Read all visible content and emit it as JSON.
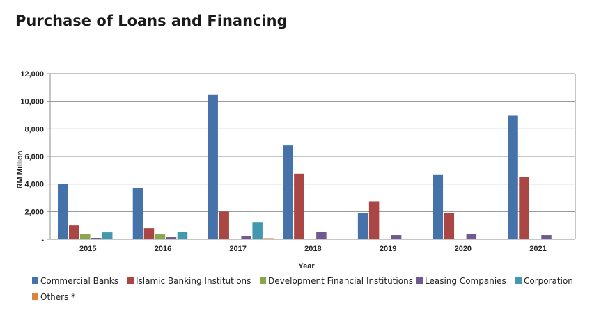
{
  "chart_data": {
    "type": "bar",
    "title": "Purchase of Loans and Financing",
    "xlabel": "Year",
    "ylabel": "RM Million",
    "categories": [
      "2015",
      "2016",
      "2017",
      "2018",
      "2019",
      "2020",
      "2021"
    ],
    "ylim": [
      0,
      12000
    ],
    "yticks": [
      0,
      2000,
      4000,
      6000,
      8000,
      10000,
      12000
    ],
    "ytick_labels": [
      "-",
      "2,000",
      "4,000",
      "6,000",
      "8,000",
      "10,000",
      "12,000"
    ],
    "grid": true,
    "legend_position": "bottom",
    "series": [
      {
        "name": "Commercial Banks",
        "color": "#4672AA",
        "values": [
          4000,
          3700,
          10500,
          6800,
          1900,
          4700,
          8950
        ]
      },
      {
        "name": "Islamic Banking Institutions",
        "color": "#AA4643",
        "values": [
          1000,
          800,
          2000,
          4750,
          2750,
          1900,
          4500
        ]
      },
      {
        "name": "Development Financial Institutions",
        "color": "#89A54E",
        "values": [
          400,
          350,
          0,
          0,
          0,
          0,
          0
        ]
      },
      {
        "name": "Leasing Companies",
        "color": "#71588F",
        "values": [
          100,
          150,
          200,
          550,
          300,
          400,
          300
        ]
      },
      {
        "name": "Corporation",
        "color": "#4198AF",
        "values": [
          500,
          550,
          1250,
          0,
          0,
          0,
          0
        ]
      },
      {
        "name": "Others *",
        "color": "#DB843D",
        "values": [
          0,
          0,
          80,
          0,
          0,
          0,
          0
        ]
      }
    ]
  }
}
